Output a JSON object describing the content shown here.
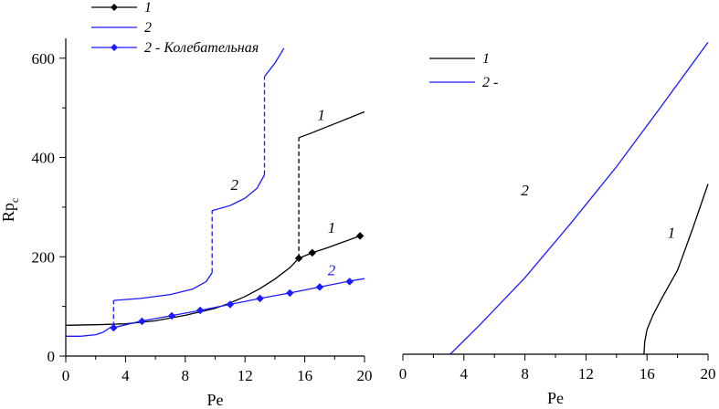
{
  "chart_data": [
    {
      "type": "line",
      "xlabel": "Pe",
      "ylabel": "Rp",
      "ylabel_sub": "c",
      "xlim": [
        0,
        20
      ],
      "ylim": [
        0,
        640
      ],
      "xticks": [
        "0",
        "4",
        "8",
        "12",
        "16",
        "20"
      ],
      "yticks": [
        "0",
        "200",
        "400",
        "600"
      ],
      "legend": {
        "placement": "top-left",
        "entries": [
          {
            "text": "1",
            "color": "#000000",
            "marker": "diamond"
          },
          {
            "text": "2",
            "color": "#1a1aff",
            "marker": "none"
          },
          {
            "text": "2 - Колебательная",
            "color": "#1a1aff",
            "marker": "diamond"
          }
        ]
      },
      "series": [
        {
          "label": "1",
          "color": "#000000",
          "style": "solid",
          "x": [
            0,
            2,
            4,
            6,
            8,
            10,
            11,
            12,
            13,
            14,
            15,
            15.6
          ],
          "y": [
            62,
            63,
            65,
            71,
            82,
            96,
            107,
            120,
            136,
            155,
            178,
            197
          ]
        },
        {
          "label": "1",
          "color": "#000000",
          "style": "dashed",
          "x": [
            15.6,
            15.6
          ],
          "y": [
            197,
            440
          ]
        },
        {
          "label": "1",
          "color": "#000000",
          "style": "solid",
          "x": [
            15.6,
            16.5,
            17.5,
            18.5,
            19.5,
            20
          ],
          "y": [
            440,
            450,
            462,
            474,
            486,
            492
          ]
        },
        {
          "label": "1",
          "color": "#000000",
          "style": "marked",
          "x": [
            15.6,
            16.5,
            17.5,
            18.5,
            19.7
          ],
          "y": [
            197,
            208,
            218,
            229,
            242
          ],
          "markers": [
            [
              15.6,
              197
            ],
            [
              16.5,
              208
            ],
            [
              19.7,
              242
            ]
          ]
        },
        {
          "label": "2",
          "color": "#1a1aff",
          "style": "solid",
          "x": [
            0,
            1,
            2,
            2.5,
            3.0
          ],
          "y": [
            40,
            40,
            43,
            48,
            58
          ]
        },
        {
          "label": "2",
          "color": "#1a1aff",
          "style": "dashed",
          "x": [
            3.2,
            3.2
          ],
          "y": [
            60,
            112
          ]
        },
        {
          "label": "2",
          "color": "#1a1aff",
          "style": "solid",
          "x": [
            3.2,
            5,
            7,
            8.5,
            9.4,
            9.8
          ],
          "y": [
            112,
            116,
            124,
            135,
            150,
            168
          ]
        },
        {
          "label": "2",
          "color": "#1a1aff",
          "style": "dashed",
          "x": [
            9.8,
            9.8
          ],
          "y": [
            168,
            293
          ]
        },
        {
          "label": "2",
          "color": "#1a1aff",
          "style": "solid",
          "x": [
            9.8,
            11,
            12,
            12.8,
            13.3
          ],
          "y": [
            293,
            303,
            318,
            338,
            365
          ]
        },
        {
          "label": "2",
          "color": "#1a1aff",
          "style": "dashed",
          "x": [
            13.3,
            13.3
          ],
          "y": [
            365,
            563
          ]
        },
        {
          "label": "2",
          "color": "#1a1aff",
          "style": "solid",
          "x": [
            13.3,
            14.0,
            14.6
          ],
          "y": [
            563,
            590,
            620
          ]
        },
        {
          "label": "2",
          "color": "#1a1aff",
          "style": "marked",
          "x": [
            3.2,
            5,
            7,
            9,
            11,
            13,
            15,
            17,
            19,
            20
          ],
          "y": [
            57,
            70,
            81,
            92,
            104,
            116,
            127,
            139,
            151,
            156
          ],
          "markers": [
            [
              3.2,
              57
            ],
            [
              5.1,
              70
            ],
            [
              7.1,
              81
            ],
            [
              9.0,
              92
            ],
            [
              11.0,
              104
            ],
            [
              13.0,
              116
            ],
            [
              15.0,
              127
            ],
            [
              17.0,
              139
            ],
            [
              19.0,
              150
            ]
          ]
        }
      ],
      "annotations": [
        {
          "text": "1",
          "x": 17.1,
          "y": 475,
          "color": "#000000"
        },
        {
          "text": "2",
          "x": 11.3,
          "y": 335,
          "color": "#000000"
        },
        {
          "text": "1",
          "x": 17.8,
          "y": 248,
          "color": "#000000"
        },
        {
          "text": "2",
          "x": 17.8,
          "y": 163,
          "color": "#1a1aff"
        }
      ]
    },
    {
      "type": "line",
      "xlabel": "Pe",
      "xlim": [
        0,
        20
      ],
      "ylim": [
        0,
        640
      ],
      "xticks": [
        "0",
        "4",
        "8",
        "12",
        "16",
        "20"
      ],
      "legend": {
        "placement": "top-left",
        "entries": [
          {
            "text": "1",
            "color": "#000000"
          },
          {
            "text": "2 -",
            "color": "#1a1aff"
          }
        ]
      },
      "series": [
        {
          "label": "2",
          "color": "#1a1aff",
          "style": "solid",
          "x": [
            3.1,
            5,
            8,
            11,
            14,
            17,
            20
          ],
          "y": [
            0,
            58,
            155,
            265,
            380,
            505,
            632
          ]
        },
        {
          "label": "1",
          "color": "#000000",
          "style": "solid",
          "x": [
            15.8,
            15.85,
            16.0,
            16.4,
            17.0,
            18.0,
            19.0,
            20.0
          ],
          "y": [
            0,
            25,
            50,
            80,
            115,
            170,
            255,
            345
          ]
        }
      ],
      "annotations": [
        {
          "text": "2",
          "x": 8.0,
          "y": 322,
          "color": "#000000"
        },
        {
          "text": "1",
          "x": 17.6,
          "y": 236,
          "color": "#000000"
        }
      ]
    }
  ]
}
